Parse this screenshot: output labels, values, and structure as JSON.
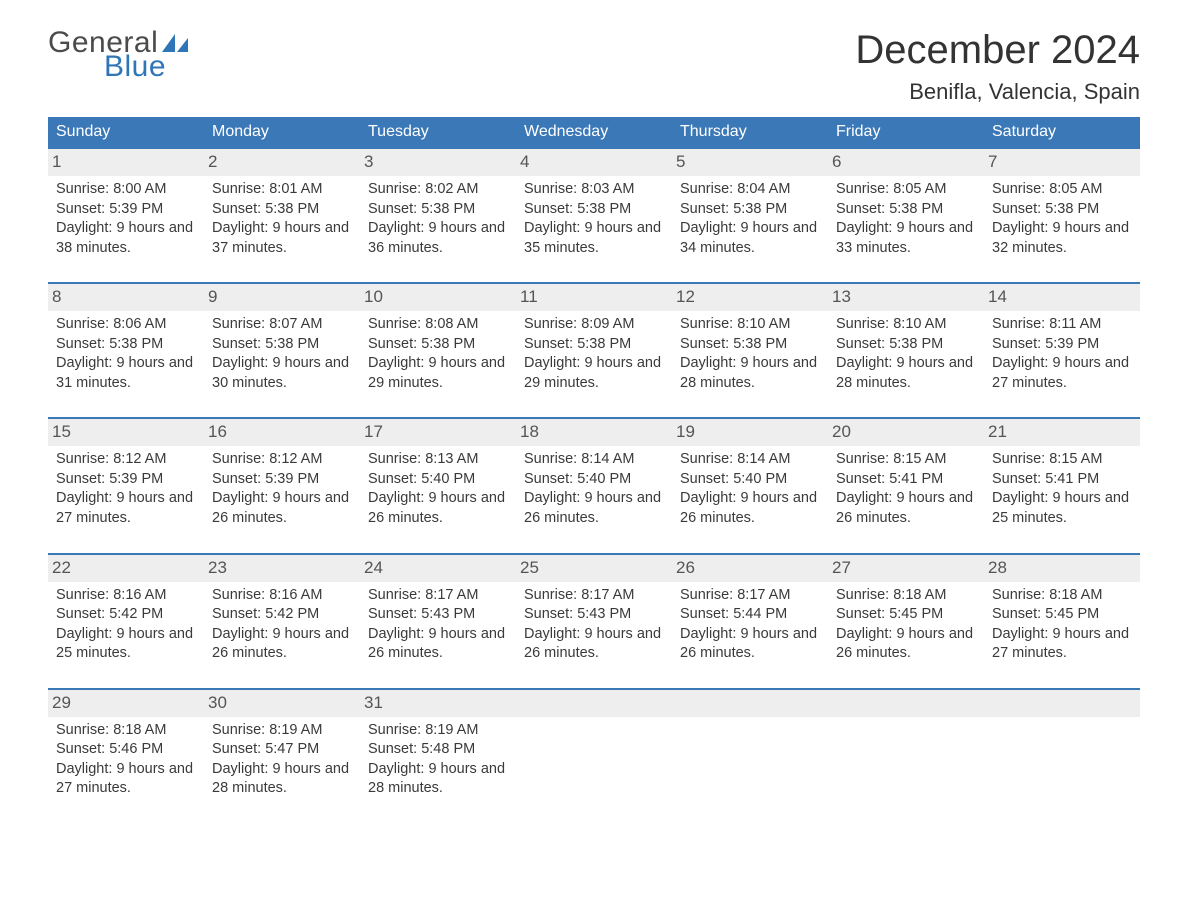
{
  "logo": {
    "general": "General",
    "blue": "Blue"
  },
  "header": {
    "month_title": "December 2024",
    "location": "Benifla, Valencia, Spain"
  },
  "colors": {
    "brand_blue": "#3b78b8",
    "header_bg": "#3b78b8",
    "daynum_bg": "#eeeeee",
    "text": "#333333",
    "background": "#ffffff"
  },
  "typography": {
    "month_title_fontsize": 40,
    "location_fontsize": 22,
    "dow_fontsize": 16,
    "day_fontsize": 14.5,
    "logo_fontsize": 30
  },
  "calendar": {
    "type": "table",
    "days_of_week": [
      "Sunday",
      "Monday",
      "Tuesday",
      "Wednesday",
      "Thursday",
      "Friday",
      "Saturday"
    ],
    "label_sunrise": "Sunrise:",
    "label_sunset": "Sunset:",
    "label_daylight_prefix": "Daylight:",
    "weeks": [
      [
        {
          "n": 1,
          "sunrise": "8:00 AM",
          "sunset": "5:39 PM",
          "daylight": "9 hours and 38 minutes."
        },
        {
          "n": 2,
          "sunrise": "8:01 AM",
          "sunset": "5:38 PM",
          "daylight": "9 hours and 37 minutes."
        },
        {
          "n": 3,
          "sunrise": "8:02 AM",
          "sunset": "5:38 PM",
          "daylight": "9 hours and 36 minutes."
        },
        {
          "n": 4,
          "sunrise": "8:03 AM",
          "sunset": "5:38 PM",
          "daylight": "9 hours and 35 minutes."
        },
        {
          "n": 5,
          "sunrise": "8:04 AM",
          "sunset": "5:38 PM",
          "daylight": "9 hours and 34 minutes."
        },
        {
          "n": 6,
          "sunrise": "8:05 AM",
          "sunset": "5:38 PM",
          "daylight": "9 hours and 33 minutes."
        },
        {
          "n": 7,
          "sunrise": "8:05 AM",
          "sunset": "5:38 PM",
          "daylight": "9 hours and 32 minutes."
        }
      ],
      [
        {
          "n": 8,
          "sunrise": "8:06 AM",
          "sunset": "5:38 PM",
          "daylight": "9 hours and 31 minutes."
        },
        {
          "n": 9,
          "sunrise": "8:07 AM",
          "sunset": "5:38 PM",
          "daylight": "9 hours and 30 minutes."
        },
        {
          "n": 10,
          "sunrise": "8:08 AM",
          "sunset": "5:38 PM",
          "daylight": "9 hours and 29 minutes."
        },
        {
          "n": 11,
          "sunrise": "8:09 AM",
          "sunset": "5:38 PM",
          "daylight": "9 hours and 29 minutes."
        },
        {
          "n": 12,
          "sunrise": "8:10 AM",
          "sunset": "5:38 PM",
          "daylight": "9 hours and 28 minutes."
        },
        {
          "n": 13,
          "sunrise": "8:10 AM",
          "sunset": "5:38 PM",
          "daylight": "9 hours and 28 minutes."
        },
        {
          "n": 14,
          "sunrise": "8:11 AM",
          "sunset": "5:39 PM",
          "daylight": "9 hours and 27 minutes."
        }
      ],
      [
        {
          "n": 15,
          "sunrise": "8:12 AM",
          "sunset": "5:39 PM",
          "daylight": "9 hours and 27 minutes."
        },
        {
          "n": 16,
          "sunrise": "8:12 AM",
          "sunset": "5:39 PM",
          "daylight": "9 hours and 26 minutes."
        },
        {
          "n": 17,
          "sunrise": "8:13 AM",
          "sunset": "5:40 PM",
          "daylight": "9 hours and 26 minutes."
        },
        {
          "n": 18,
          "sunrise": "8:14 AM",
          "sunset": "5:40 PM",
          "daylight": "9 hours and 26 minutes."
        },
        {
          "n": 19,
          "sunrise": "8:14 AM",
          "sunset": "5:40 PM",
          "daylight": "9 hours and 26 minutes."
        },
        {
          "n": 20,
          "sunrise": "8:15 AM",
          "sunset": "5:41 PM",
          "daylight": "9 hours and 26 minutes."
        },
        {
          "n": 21,
          "sunrise": "8:15 AM",
          "sunset": "5:41 PM",
          "daylight": "9 hours and 25 minutes."
        }
      ],
      [
        {
          "n": 22,
          "sunrise": "8:16 AM",
          "sunset": "5:42 PM",
          "daylight": "9 hours and 25 minutes."
        },
        {
          "n": 23,
          "sunrise": "8:16 AM",
          "sunset": "5:42 PM",
          "daylight": "9 hours and 26 minutes."
        },
        {
          "n": 24,
          "sunrise": "8:17 AM",
          "sunset": "5:43 PM",
          "daylight": "9 hours and 26 minutes."
        },
        {
          "n": 25,
          "sunrise": "8:17 AM",
          "sunset": "5:43 PM",
          "daylight": "9 hours and 26 minutes."
        },
        {
          "n": 26,
          "sunrise": "8:17 AM",
          "sunset": "5:44 PM",
          "daylight": "9 hours and 26 minutes."
        },
        {
          "n": 27,
          "sunrise": "8:18 AM",
          "sunset": "5:45 PM",
          "daylight": "9 hours and 26 minutes."
        },
        {
          "n": 28,
          "sunrise": "8:18 AM",
          "sunset": "5:45 PM",
          "daylight": "9 hours and 27 minutes."
        }
      ],
      [
        {
          "n": 29,
          "sunrise": "8:18 AM",
          "sunset": "5:46 PM",
          "daylight": "9 hours and 27 minutes."
        },
        {
          "n": 30,
          "sunrise": "8:19 AM",
          "sunset": "5:47 PM",
          "daylight": "9 hours and 28 minutes."
        },
        {
          "n": 31,
          "sunrise": "8:19 AM",
          "sunset": "5:48 PM",
          "daylight": "9 hours and 28 minutes."
        },
        null,
        null,
        null,
        null
      ]
    ]
  }
}
